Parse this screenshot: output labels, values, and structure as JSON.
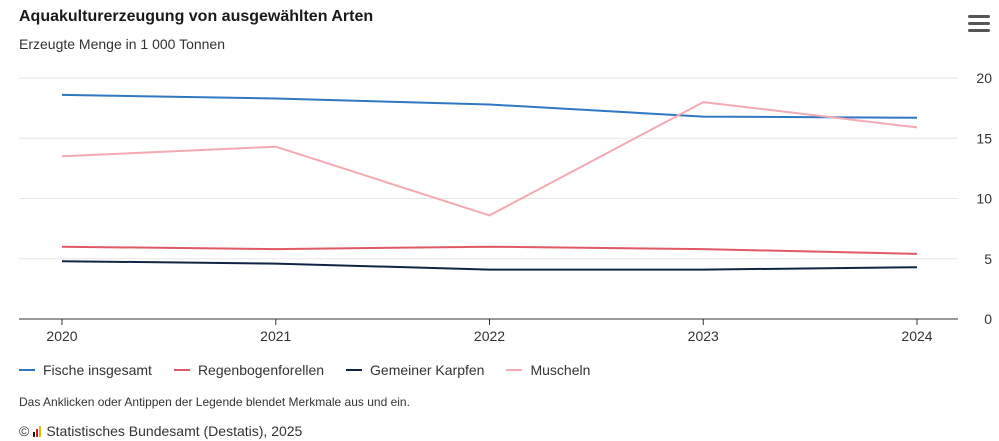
{
  "header": {
    "title": "Aquakulturerzeugung von ausgewählten Arten",
    "subtitle": "Erzeugte Menge in 1 000 Tonnen"
  },
  "menu": {
    "icon": "hamburger-menu-icon"
  },
  "chart_data": {
    "type": "line",
    "x": [
      "2020",
      "2021",
      "2022",
      "2023",
      "2024"
    ],
    "y_ticks": [
      "0",
      "5",
      "10",
      "15",
      "20"
    ],
    "ylim": [
      0,
      20
    ],
    "y_axis_side": "right",
    "grid": true,
    "legend_position": "bottom",
    "series": [
      {
        "name": "Fische insgesamt",
        "color": "#2f78c4",
        "values": [
          18.6,
          18.3,
          17.8,
          16.8,
          16.7
        ]
      },
      {
        "name": "Regenbogenforellen",
        "color": "#e05a66",
        "values": [
          6.0,
          5.8,
          6.0,
          5.8,
          5.4
        ]
      },
      {
        "name": "Gemeiner Karpfen",
        "color": "#0f2543",
        "values": [
          4.8,
          4.6,
          4.1,
          4.1,
          4.3
        ]
      },
      {
        "name": "Muscheln",
        "color": "#f5a9b2",
        "values": [
          13.5,
          14.3,
          8.6,
          18.0,
          15.9
        ]
      }
    ]
  },
  "footer": {
    "hint": "Das Anklicken oder Antippen der Legende blendet Merkmale aus und ein.",
    "copyright": "©",
    "logo_icon": "destatis-logo-icon",
    "source": "Statistisches Bundesamt (Destatis), 2025"
  }
}
